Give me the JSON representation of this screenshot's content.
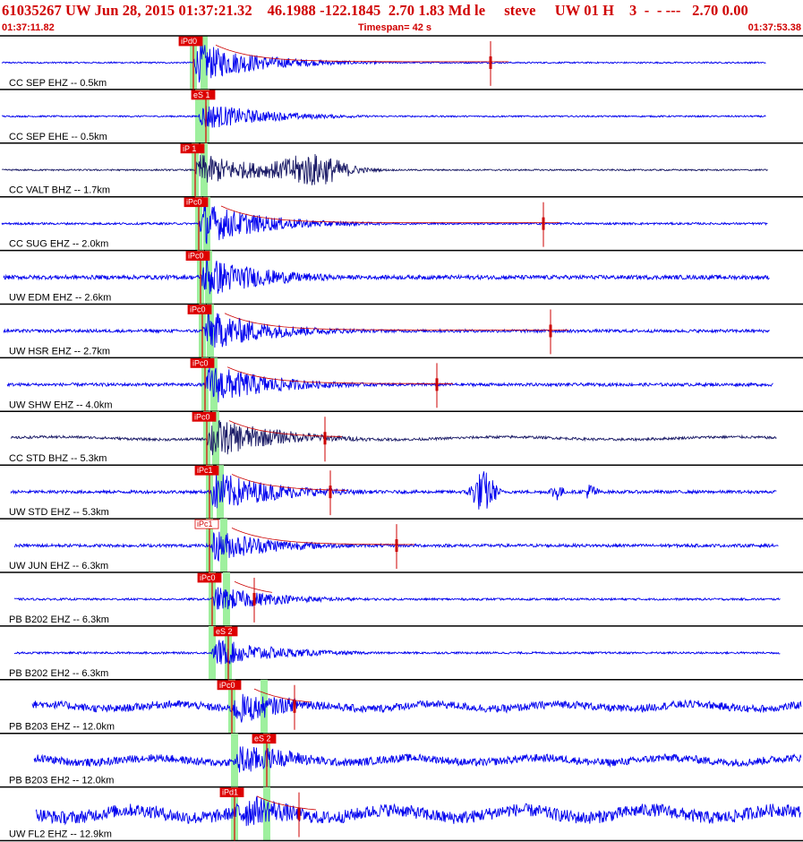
{
  "header": {
    "title": "61035267 UW Jun 28, 2015 01:37:21.32    46.1988 -122.1845  2.70 1.83 Md le     steve     UW 01 H    3  -  - ---   2.70 0.00",
    "start_time": "01:37:11.82",
    "timespan": "Timespan=  42 s",
    "end_time": "01:37:53.38"
  },
  "colors": {
    "title": "#d00000",
    "trace": "#0000ee",
    "trace_dark": "#1a1a66",
    "pick_box": "#dd0000",
    "coda_fit": "#cc0000",
    "window_highlight": "#9ef09e",
    "divider": "#000000"
  },
  "channels": [
    {
      "label": "CC SEP EHZ -- 0.5km",
      "p_pick": "iPd0",
      "s_pick": "",
      "dark": false,
      "amp": 0.85,
      "noise": 0.03,
      "cue": "iPd0"
    },
    {
      "label": "CC SEP EHE -- 0.5km",
      "p_pick": "",
      "s_pick": "eS 1",
      "dark": false,
      "amp": 0.6,
      "noise": 0.03,
      "cue": "eS 1"
    },
    {
      "label": "CC VALT BHZ -- 1.7km",
      "p_pick": "iP 1",
      "s_pick": "",
      "dark": true,
      "amp": 0.7,
      "noise": 0.03,
      "cue": "iP 1"
    },
    {
      "label": "CC SUG EHZ -- 2.0km",
      "p_pick": "iPc0",
      "s_pick": "",
      "dark": false,
      "amp": 0.9,
      "noise": 0.04,
      "cue": "iPc0"
    },
    {
      "label": "UW EDM EHZ -- 2.6km",
      "p_pick": "iPc0",
      "s_pick": "",
      "dark": false,
      "amp": 0.9,
      "noise": 0.08,
      "cue": "iPc0"
    },
    {
      "label": "UW HSR EHZ -- 2.7km",
      "p_pick": "iPc0",
      "s_pick": "",
      "dark": false,
      "amp": 0.9,
      "noise": 0.06,
      "cue": "iPc0"
    },
    {
      "label": "UW SHW EHZ -- 4.0km",
      "p_pick": "iPc0",
      "s_pick": "",
      "dark": false,
      "amp": 0.9,
      "noise": 0.06,
      "cue": "iPc0"
    },
    {
      "label": "CC STD BHZ -- 5.3km",
      "p_pick": "iPc0",
      "s_pick": "",
      "dark": true,
      "amp": 0.9,
      "noise": 0.05,
      "cue": "iPc0"
    },
    {
      "label": "UW STD EHZ -- 5.3km",
      "p_pick": "iPc1",
      "s_pick": "",
      "dark": false,
      "amp": 0.9,
      "noise": 0.06,
      "cue": "iPc1"
    },
    {
      "label": "UW JUN EHZ -- 6.3km",
      "p_pick": "iPc1",
      "s_pick": "",
      "dark": false,
      "amp": 0.7,
      "noise": 0.06,
      "cue": "iPc1"
    },
    {
      "label": "PB B202 EHZ -- 6.3km",
      "p_pick": "iPc0",
      "s_pick": "",
      "dark": false,
      "amp": 0.55,
      "noise": 0.04,
      "cue": "iPc0"
    },
    {
      "label": "PB B202 EH2 -- 6.3km",
      "p_pick": "",
      "s_pick": "eS 2",
      "dark": false,
      "amp": 0.6,
      "noise": 0.04,
      "cue": "eS 2"
    },
    {
      "label": "PB B203 EHZ -- 12.0km",
      "p_pick": "iPc0",
      "s_pick": "",
      "dark": false,
      "amp": 0.7,
      "noise": 0.15,
      "cue": "iPc0"
    },
    {
      "label": "PB B203 EH2 -- 12.0km",
      "p_pick": "",
      "s_pick": "eS 2",
      "dark": false,
      "amp": 0.7,
      "noise": 0.15,
      "cue": "eS 2"
    },
    {
      "label": "UW FL2 EHZ -- 12.9km",
      "p_pick": "iPd1",
      "s_pick": "",
      "dark": false,
      "amp": 0.8,
      "noise": 0.25,
      "cue": "iPd1"
    }
  ]
}
